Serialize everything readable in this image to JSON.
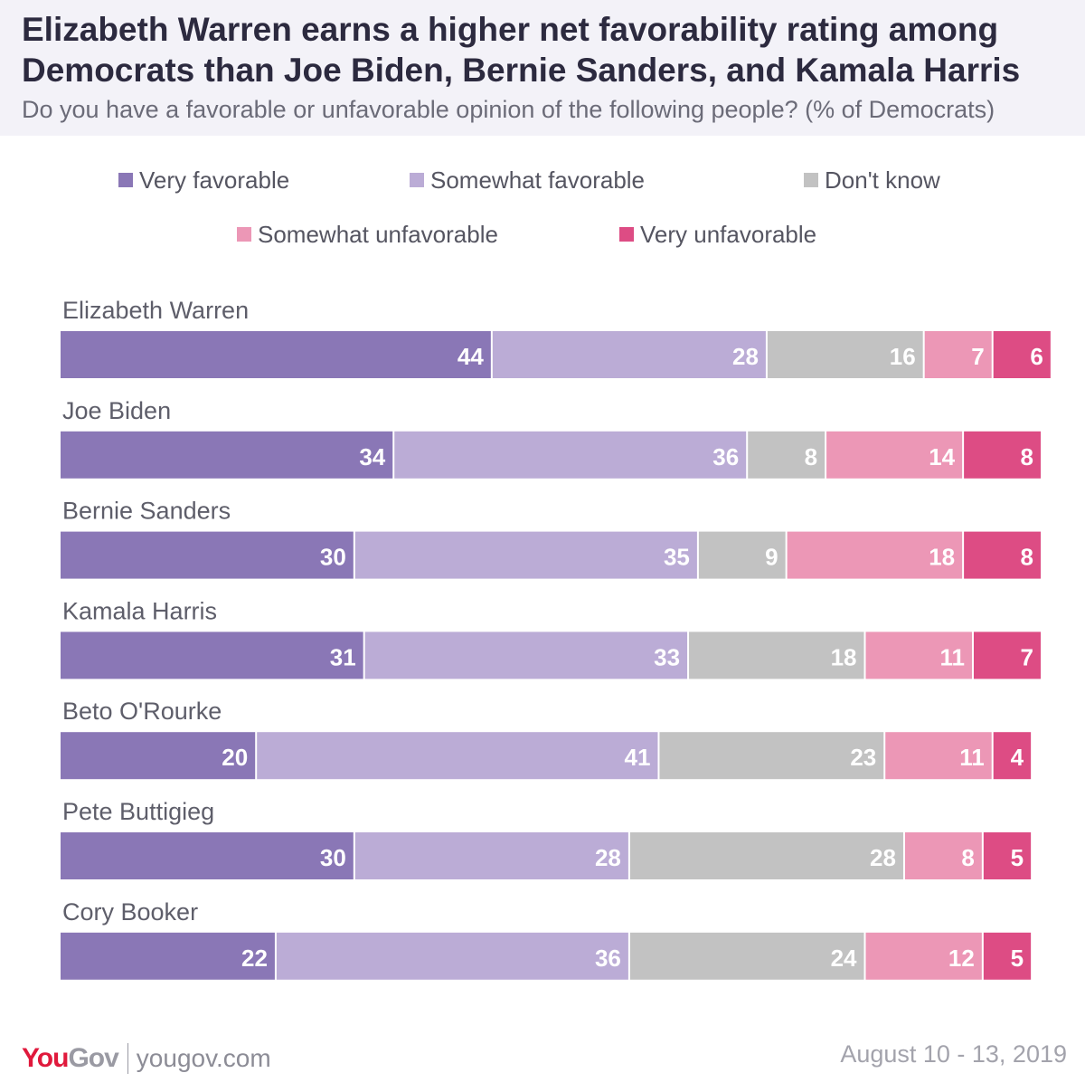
{
  "header": {
    "title": "Elizabeth Warren earns a higher net favorability rating among Democrats than Joe Biden, Bernie Sanders, and Kamala Harris",
    "subtitle": "Do you have a favorable or unfavorable opinion of the following people? (% of Democrats)"
  },
  "footer": {
    "logo_you": "You",
    "logo_gov": "Gov",
    "site": "yougov.com",
    "date": "August 10 - 13, 2019"
  },
  "colors": {
    "very_favorable": "#8a77b6",
    "somewhat_favorable": "#bbacd6",
    "dont_know": "#c2c2c2",
    "somewhat_unfavorable": "#ec97b6",
    "very_unfavorable": "#dd4c84"
  },
  "chart_data": {
    "type": "bar",
    "orientation": "horizontal",
    "stacked": true,
    "categories": [
      "Elizabeth Warren",
      "Joe Biden",
      "Bernie Sanders",
      "Kamala Harris",
      "Beto O'Rourke",
      "Pete Buttigieg",
      "Cory Booker"
    ],
    "series": [
      {
        "name": "Very favorable",
        "color": "#8a77b6",
        "values": [
          44,
          34,
          30,
          31,
          20,
          30,
          22
        ]
      },
      {
        "name": "Somewhat favorable",
        "color": "#bbacd6",
        "values": [
          28,
          36,
          35,
          33,
          41,
          28,
          36
        ]
      },
      {
        "name": "Don't know",
        "color": "#c2c2c2",
        "values": [
          16,
          8,
          9,
          18,
          23,
          28,
          24
        ]
      },
      {
        "name": "Somewhat unfavorable",
        "color": "#ec97b6",
        "values": [
          7,
          14,
          18,
          11,
          11,
          8,
          12
        ]
      },
      {
        "name": "Very unfavorable",
        "color": "#dd4c84",
        "values": [
          6,
          8,
          8,
          7,
          4,
          5,
          5
        ]
      }
    ],
    "xlim": [
      0,
      100
    ],
    "legend": "top",
    "grid": false
  }
}
